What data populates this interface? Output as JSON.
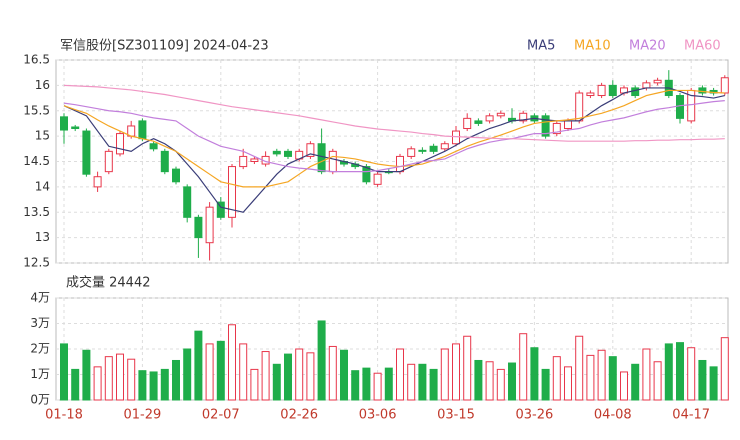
{
  "chart_data": {
    "type": "candlestick",
    "title": "军信股份[SZ301109] 2024-04-23",
    "categories": [
      "01-18",
      null,
      null,
      null,
      null,
      null,
      null,
      "01-29",
      null,
      null,
      null,
      null,
      null,
      null,
      "02-07",
      null,
      null,
      null,
      null,
      null,
      null,
      "02-26",
      null,
      null,
      null,
      null,
      null,
      null,
      "03-06",
      null,
      null,
      null,
      null,
      null,
      null,
      "03-15",
      null,
      null,
      null,
      null,
      null,
      null,
      "03-26",
      null,
      null,
      null,
      null,
      null,
      null,
      "04-08",
      null,
      null,
      null,
      null,
      null,
      null,
      "04-17",
      null,
      null,
      null
    ],
    "open": [
      15.38,
      15.18,
      15.1,
      14.0,
      14.3,
      14.65,
      15.0,
      15.3,
      14.85,
      14.7,
      14.35,
      14.0,
      13.4,
      12.9,
      13.7,
      13.4,
      14.4,
      14.5,
      14.45,
      14.7,
      14.7,
      14.55,
      14.6,
      14.85,
      14.3,
      14.5,
      14.45,
      14.4,
      14.05,
      14.3,
      14.3,
      14.6,
      14.72,
      14.8,
      14.75,
      14.85,
      15.15,
      15.3,
      15.3,
      15.4,
      15.35,
      15.3,
      15.4,
      15.4,
      15.05,
      15.15,
      15.3,
      15.8,
      15.8,
      16.0,
      15.85,
      15.95,
      15.95,
      16.05,
      16.1,
      15.8,
      15.3,
      15.95,
      15.9,
      15.85
    ],
    "close": [
      15.12,
      15.15,
      14.25,
      14.2,
      14.7,
      15.05,
      15.2,
      14.95,
      14.75,
      14.3,
      14.1,
      13.4,
      13.0,
      13.6,
      13.4,
      14.4,
      14.6,
      14.55,
      14.6,
      14.65,
      14.6,
      14.7,
      14.85,
      14.3,
      14.7,
      14.45,
      14.4,
      14.1,
      14.25,
      14.28,
      14.6,
      14.75,
      14.7,
      14.7,
      14.85,
      15.1,
      15.35,
      15.25,
      15.4,
      15.45,
      15.3,
      15.45,
      15.3,
      15.0,
      15.25,
      15.3,
      15.85,
      15.85,
      16.0,
      15.8,
      15.95,
      15.8,
      16.05,
      16.1,
      15.8,
      15.35,
      15.9,
      15.85,
      15.85,
      16.15
    ],
    "high": [
      15.45,
      15.22,
      15.15,
      14.3,
      14.75,
      15.1,
      15.3,
      15.35,
      14.9,
      14.75,
      14.4,
      14.05,
      13.45,
      13.7,
      13.8,
      14.45,
      14.75,
      14.6,
      14.7,
      14.75,
      14.75,
      14.75,
      14.9,
      15.15,
      14.75,
      14.55,
      14.5,
      14.45,
      14.3,
      14.35,
      14.65,
      14.8,
      14.78,
      14.85,
      14.9,
      15.2,
      15.45,
      15.35,
      15.45,
      15.5,
      15.55,
      15.5,
      15.45,
      15.45,
      15.3,
      15.35,
      15.9,
      15.9,
      16.05,
      16.1,
      16.0,
      16.0,
      16.1,
      16.15,
      16.3,
      15.85,
      15.95,
      16.0,
      15.95,
      16.2
    ],
    "low": [
      14.85,
      15.1,
      14.2,
      13.9,
      14.25,
      14.6,
      14.95,
      14.9,
      14.7,
      14.25,
      14.05,
      13.3,
      12.6,
      12.55,
      13.35,
      13.2,
      14.35,
      14.45,
      14.4,
      14.6,
      14.55,
      14.5,
      14.55,
      14.25,
      14.25,
      14.4,
      14.35,
      14.05,
      14.0,
      14.25,
      14.25,
      14.55,
      14.65,
      14.65,
      14.7,
      14.8,
      15.1,
      15.2,
      15.25,
      15.35,
      15.25,
      15.25,
      15.25,
      14.95,
      15.0,
      15.1,
      15.25,
      15.75,
      15.75,
      15.75,
      15.8,
      15.75,
      15.9,
      16.0,
      15.75,
      15.25,
      15.25,
      15.8,
      15.8,
      15.8
    ],
    "up_color": "#e8364a",
    "down_color": "#1fad4a",
    "series": [
      {
        "name": "MA5",
        "color": "#3a3d78",
        "values": [
          15.6,
          15.5,
          15.4,
          15.1,
          14.8,
          14.75,
          14.7,
          14.85,
          14.95,
          14.85,
          14.7,
          14.45,
          14.2,
          13.9,
          13.6,
          13.55,
          13.5,
          13.75,
          14.0,
          14.25,
          14.45,
          14.55,
          14.65,
          14.6,
          14.55,
          14.5,
          14.45,
          14.38,
          14.3,
          14.3,
          14.3,
          14.4,
          14.5,
          14.6,
          14.7,
          14.82,
          14.95,
          15.05,
          15.15,
          15.22,
          15.3,
          15.32,
          15.35,
          15.32,
          15.3,
          15.3,
          15.3,
          15.45,
          15.6,
          15.72,
          15.85,
          15.9,
          15.95,
          15.95,
          15.95,
          15.88,
          15.8,
          15.78,
          15.75,
          15.8
        ]
      },
      {
        "name": "MA10",
        "color": "#f5a623",
        "values": [
          15.6,
          15.52,
          15.45,
          15.32,
          15.2,
          15.1,
          15.0,
          14.95,
          14.9,
          14.8,
          14.7,
          14.55,
          14.4,
          14.25,
          14.1,
          14.05,
          14.0,
          14.0,
          14.0,
          14.05,
          14.1,
          14.25,
          14.4,
          14.5,
          14.6,
          14.58,
          14.55,
          14.5,
          14.45,
          14.42,
          14.4,
          14.42,
          14.45,
          14.52,
          14.6,
          14.7,
          14.8,
          14.88,
          14.95,
          15.02,
          15.1,
          15.18,
          15.25,
          15.28,
          15.3,
          15.32,
          15.35,
          15.4,
          15.45,
          15.52,
          15.6,
          15.7,
          15.8,
          15.85,
          15.9,
          15.9,
          15.9,
          15.88,
          15.86,
          15.85
        ]
      },
      {
        "name": "MA20",
        "color": "#c27fdc",
        "values": [
          15.65,
          15.62,
          15.58,
          15.54,
          15.5,
          15.48,
          15.45,
          15.4,
          15.36,
          15.33,
          15.3,
          15.15,
          15.0,
          14.9,
          14.8,
          14.75,
          14.7,
          14.6,
          14.5,
          14.45,
          14.4,
          14.37,
          14.35,
          14.32,
          14.3,
          14.3,
          14.3,
          14.3,
          14.32,
          14.36,
          14.4,
          14.45,
          14.5,
          14.52,
          14.55,
          14.65,
          14.75,
          14.82,
          14.88,
          14.92,
          14.95,
          15.0,
          15.05,
          15.05,
          15.08,
          15.12,
          15.15,
          15.22,
          15.28,
          15.32,
          15.36,
          15.42,
          15.48,
          15.53,
          15.56,
          15.6,
          15.62,
          15.65,
          15.68,
          15.7
        ]
      },
      {
        "name": "MA60",
        "color": "#f095c4",
        "values": [
          16.0,
          15.99,
          15.98,
          15.97,
          15.95,
          15.93,
          15.91,
          15.88,
          15.85,
          15.82,
          15.78,
          15.74,
          15.7,
          15.66,
          15.62,
          15.58,
          15.55,
          15.52,
          15.49,
          15.46,
          15.43,
          15.4,
          15.36,
          15.32,
          15.28,
          15.24,
          15.2,
          15.17,
          15.14,
          15.12,
          15.1,
          15.08,
          15.05,
          15.03,
          15.0,
          14.99,
          14.98,
          14.97,
          14.96,
          14.95,
          14.95,
          14.94,
          14.93,
          14.92,
          14.91,
          14.9,
          14.9,
          14.9,
          14.9,
          14.9,
          14.9,
          14.91,
          14.91,
          14.92,
          14.92,
          14.93,
          14.93,
          14.94,
          14.94,
          14.95
        ]
      }
    ],
    "ylim": [
      12.5,
      16.5
    ],
    "yticks": [
      12.5,
      13,
      13.5,
      14,
      14.5,
      15,
      15.5,
      16,
      16.5
    ],
    "grid": true,
    "volume": {
      "title": "成交量 24442",
      "values": [
        2.2,
        1.2,
        1.95,
        1.3,
        1.7,
        1.8,
        1.6,
        1.15,
        1.1,
        1.2,
        1.55,
        2.0,
        2.7,
        2.2,
        2.3,
        2.95,
        2.2,
        1.2,
        1.9,
        1.4,
        1.8,
        2.0,
        1.85,
        3.1,
        2.1,
        1.95,
        1.15,
        1.25,
        1.05,
        1.25,
        2.0,
        1.4,
        1.4,
        1.2,
        2.0,
        2.2,
        2.5,
        1.55,
        1.5,
        1.2,
        1.45,
        2.6,
        2.05,
        1.2,
        1.7,
        1.3,
        2.5,
        1.75,
        1.95,
        1.7,
        1.1,
        1.4,
        2.0,
        1.5,
        2.2,
        2.25,
        2.05,
        1.55,
        1.3,
        2.4442
      ],
      "ylim": [
        0,
        4
      ],
      "yticks": [
        {
          "value": 0,
          "label": "0万"
        },
        {
          "value": 1,
          "label": "1万"
        },
        {
          "value": 2,
          "label": "2万"
        },
        {
          "value": 3,
          "label": "3万"
        },
        {
          "value": 4,
          "label": "4万"
        }
      ]
    }
  }
}
